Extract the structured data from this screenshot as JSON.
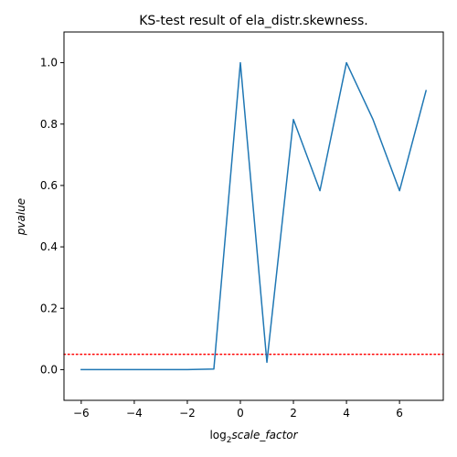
{
  "chart_data": {
    "type": "line",
    "title": "KS-test result of ela_distr.skewness.",
    "xlabel_prefix": "log",
    "xlabel_subscript": "2",
    "xlabel_main": "scale_factor",
    "ylabel": "pvalue",
    "xlim": [
      -6.65,
      7.65
    ],
    "ylim": [
      -0.1,
      1.1
    ],
    "x_ticks": [
      -6,
      -4,
      -2,
      0,
      2,
      4,
      6
    ],
    "x_tick_labels": [
      "−6",
      "−4",
      "−2",
      "0",
      "2",
      "4",
      "6"
    ],
    "y_ticks": [
      0.0,
      0.2,
      0.4,
      0.6,
      0.8,
      1.0
    ],
    "y_tick_labels": [
      "0.0",
      "0.2",
      "0.4",
      "0.6",
      "0.8",
      "1.0"
    ],
    "grid": false,
    "series": [
      {
        "color": "#1f77b4",
        "x": [
          -6,
          -5,
          -4,
          -3,
          -2,
          -1,
          0,
          1,
          2,
          3,
          4,
          5,
          6,
          7
        ],
        "y": [
          0.0,
          0.0,
          0.0,
          0.0,
          0.0,
          0.002,
          1.0,
          0.024,
          0.815,
          0.583,
          1.0,
          0.815,
          0.583,
          0.909
        ]
      }
    ],
    "reference_line": {
      "y": 0.05,
      "color": "#ff0000",
      "style": "dotted"
    }
  }
}
